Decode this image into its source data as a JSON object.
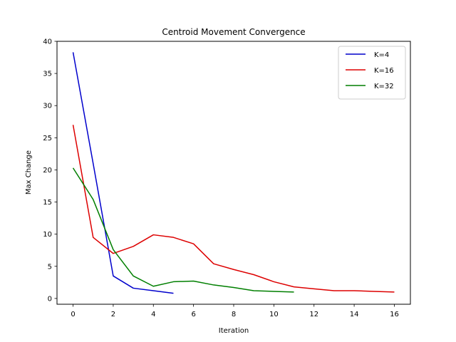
{
  "chart_data": {
    "type": "line",
    "title": "Centroid Movement Convergence",
    "xlabel": "Iteration",
    "ylabel": "Max Change",
    "xlim": [
      -0.8,
      16.8
    ],
    "ylim": [
      -0.9,
      40.0
    ],
    "xticks": [
      0,
      2,
      4,
      6,
      8,
      10,
      12,
      14,
      16
    ],
    "yticks": [
      0,
      5,
      10,
      15,
      20,
      25,
      30,
      35,
      40
    ],
    "grid": false,
    "legend_position": "upper right",
    "series": [
      {
        "name": "K=4",
        "color": "#0000cc",
        "x": [
          0,
          1,
          2,
          3,
          4,
          5
        ],
        "values": [
          38.3,
          21.0,
          3.5,
          1.6,
          1.2,
          0.8
        ]
      },
      {
        "name": "K=16",
        "color": "#dd0000",
        "x": [
          0,
          1,
          2,
          3,
          4,
          5,
          6,
          7,
          8,
          9,
          10,
          11,
          12,
          13,
          14,
          15,
          16
        ],
        "values": [
          27.0,
          9.5,
          7.0,
          8.1,
          9.9,
          9.5,
          8.5,
          5.4,
          4.5,
          3.7,
          2.6,
          1.8,
          1.5,
          1.2,
          1.2,
          1.1,
          1.0
        ]
      },
      {
        "name": "K=32",
        "color": "#007f00",
        "x": [
          0,
          1,
          2,
          3,
          4,
          5,
          6,
          7,
          8,
          9,
          10,
          11
        ],
        "values": [
          20.3,
          15.4,
          7.6,
          3.5,
          1.9,
          2.6,
          2.7,
          2.1,
          1.7,
          1.2,
          1.1,
          1.0
        ]
      }
    ]
  }
}
